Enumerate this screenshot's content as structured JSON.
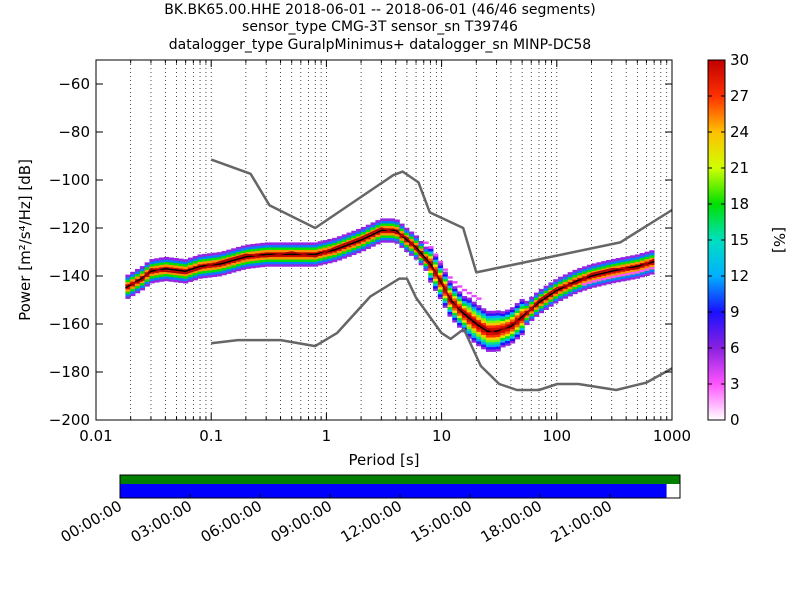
{
  "chart_data": {
    "type": "heatmap",
    "title_lines": [
      "BK.BK65.00.HHE   2018-06-01 -- 2018-06-01  (46/46 segments)",
      "sensor_type CMG-3T sensor_sn T39746",
      "datalogger_type GuralpMinimus+ datalogger_sn MINP-DC58"
    ],
    "xlabel": "Period [s]",
    "ylabel": "Power [m²/s⁴/Hz] [dB]",
    "xscale": "log",
    "xlim": [
      0.01,
      1000
    ],
    "ylim": [
      -200,
      -50
    ],
    "x_ticks": [
      0.01,
      0.1,
      1,
      10,
      100,
      1000
    ],
    "x_tick_labels": [
      "0.01",
      "0.1",
      "1",
      "10",
      "100",
      "1000"
    ],
    "y_ticks": [
      -200,
      -180,
      -160,
      -140,
      -120,
      -100,
      -80,
      -60
    ],
    "y_tick_labels": [
      "−200",
      "−180",
      "−160",
      "−140",
      "−120",
      "−100",
      "−80",
      "−60"
    ],
    "grid": "vertical dotted at log minor ticks",
    "colorbar": {
      "label": "[%]",
      "range": [
        0,
        30
      ],
      "ticks": [
        0,
        3,
        6,
        9,
        12,
        15,
        18,
        21,
        24,
        27,
        30
      ],
      "tick_labels": [
        "0",
        "3",
        "6",
        "9",
        "12",
        "15",
        "18",
        "21",
        "24",
        "27",
        "30"
      ],
      "colors": [
        "#ffffff",
        "#ff55ff",
        "#8a20e0",
        "#1a10ff",
        "#00b0ff",
        "#00e0c0",
        "#00e000",
        "#d0ff00",
        "#ffc000",
        "#ff3000",
        "#c00000"
      ]
    },
    "series": [
      {
        "name": "NHNM",
        "color": "#666666",
        "x": [
          0.1,
          0.22,
          0.32,
          0.8,
          3.8,
          4.6,
          6.3,
          7.9,
          15.4,
          20,
          354.8,
          1000
        ],
        "y": [
          -91.5,
          -97.4,
          -110.5,
          -120,
          -98,
          -96.5,
          -101,
          -113.5,
          -120,
          -138.5,
          -126,
          -112.5
        ]
      },
      {
        "name": "NLNM",
        "color": "#666666",
        "x": [
          0.1,
          0.17,
          0.4,
          0.8,
          1.24,
          2.4,
          4.3,
          5,
          6,
          10,
          12,
          15.6,
          21.9,
          31.6,
          45,
          70,
          101,
          154,
          328,
          600,
          1000
        ],
        "y": [
          -168,
          -166.7,
          -166.7,
          -169.2,
          -163.7,
          -148.6,
          -141.1,
          -141.1,
          -149,
          -163.8,
          -166.2,
          -162.1,
          -177.5,
          -185,
          -187.5,
          -187.5,
          -185,
          -185,
          -187.5,
          -184.4,
          -178.5
        ]
      },
      {
        "name": "median",
        "color": "#000000",
        "x": [
          0.018,
          0.025,
          0.03,
          0.04,
          0.06,
          0.08,
          0.12,
          0.2,
          0.3,
          0.5,
          0.8,
          1.2,
          2,
          3,
          4,
          5,
          6,
          8,
          10,
          12,
          15,
          20,
          25,
          30,
          40,
          50,
          70,
          100,
          150,
          200,
          300,
          500,
          700
        ],
        "y": [
          -145,
          -141,
          -138,
          -137,
          -138,
          -136,
          -135,
          -132,
          -131,
          -131,
          -131,
          -129,
          -125,
          -121,
          -121,
          -125,
          -128,
          -135,
          -143,
          -150,
          -155,
          -160,
          -163,
          -163,
          -161,
          -157,
          -151,
          -146,
          -142,
          -140,
          -138,
          -136,
          -134
        ]
      },
      {
        "name": "mode",
        "color": "#b00000",
        "x": [
          0.018,
          0.025,
          0.03,
          0.04,
          0.06,
          0.08,
          0.12,
          0.2,
          0.3,
          0.5,
          0.8,
          1.2,
          2,
          3,
          4,
          5,
          6,
          8,
          10,
          12,
          15,
          20,
          25,
          30,
          40,
          50,
          70,
          100,
          150,
          200,
          300,
          500,
          700
        ],
        "y": [
          -144,
          -142,
          -137,
          -138,
          -139,
          -137,
          -134,
          -131,
          -132,
          -130,
          -132,
          -128,
          -124,
          -120,
          -122,
          -124,
          -129,
          -136,
          -142,
          -151,
          -154,
          -159,
          -162,
          -164,
          -160,
          -158,
          -150,
          -145,
          -143,
          -139,
          -137,
          -137,
          -133
        ]
      }
    ]
  },
  "availability": {
    "time_labels": [
      "00:00:00",
      "03:00:00",
      "06:00:00",
      "09:00:00",
      "12:00:00",
      "15:00:00",
      "18:00:00",
      "21:00:00"
    ],
    "segments_coverage_fraction": 1.0,
    "data_coverage_fraction": 0.976,
    "segments_color": "#007f00",
    "data_color": "#0000ff"
  }
}
